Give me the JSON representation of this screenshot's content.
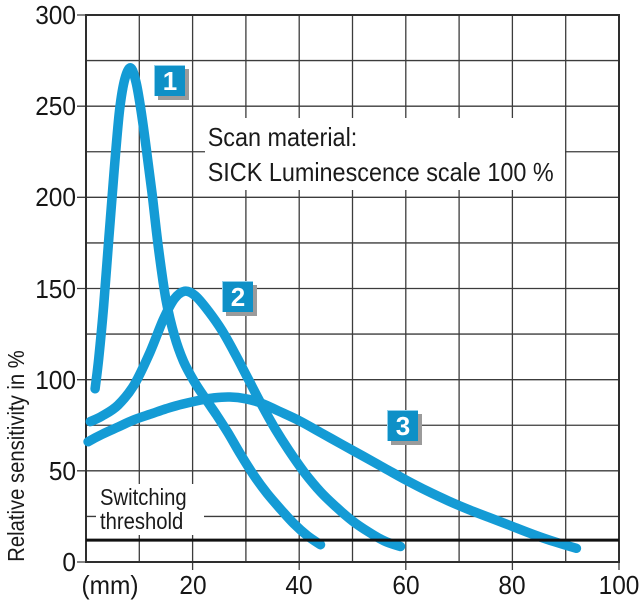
{
  "chart_data": {
    "type": "line",
    "title": "",
    "xlabel": "",
    "ylabel": "Relative sensitivity in %",
    "x_unit_label": "(mm)",
    "x_axis": {
      "min": 0,
      "max": 100,
      "grid_step": 10,
      "label_step": 20,
      "labeled_values": [
        20,
        40,
        60,
        80,
        100
      ]
    },
    "y_axis": {
      "min": 0,
      "max": 300,
      "grid_step": 25,
      "label_step": 50,
      "labeled_values": [
        0,
        50,
        100,
        150,
        200,
        250,
        300
      ]
    },
    "grid": "on",
    "annotation": {
      "line1": "Scan material:",
      "line2": "SICK Luminescence scale 100 %"
    },
    "threshold": {
      "value": 12,
      "label_line1": "Switching",
      "label_line2": "threshold"
    },
    "series": [
      {
        "name": "Curve 1",
        "badge": "1",
        "points": [
          [
            1.7,
            95
          ],
          [
            2.4,
            112
          ],
          [
            3.3,
            140
          ],
          [
            4.3,
            178
          ],
          [
            5.3,
            215
          ],
          [
            6.3,
            248
          ],
          [
            7.3,
            265
          ],
          [
            8.4,
            271
          ],
          [
            9.4,
            263
          ],
          [
            10.3,
            248
          ],
          [
            11.3,
            227
          ],
          [
            12.4,
            202
          ],
          [
            13.6,
            172
          ],
          [
            15,
            144
          ],
          [
            16.6,
            124
          ],
          [
            18.3,
            110
          ],
          [
            20.3,
            99
          ],
          [
            22.3,
            90
          ],
          [
            24.4,
            81
          ],
          [
            26.6,
            71
          ],
          [
            29,
            59
          ],
          [
            31.5,
            47.5
          ],
          [
            34,
            37.5
          ],
          [
            36.5,
            29
          ],
          [
            39,
            21
          ],
          [
            41.5,
            14.5
          ],
          [
            44,
            9.5
          ]
        ]
      },
      {
        "name": "Curve 2",
        "badge": "2",
        "points": [
          [
            0.8,
            77
          ],
          [
            3,
            80
          ],
          [
            6,
            86
          ],
          [
            9,
            97
          ],
          [
            12,
            115
          ],
          [
            14.5,
            133
          ],
          [
            16.5,
            144
          ],
          [
            18.5,
            148.5
          ],
          [
            20.5,
            146
          ],
          [
            23,
            137.5
          ],
          [
            25.5,
            127
          ],
          [
            28,
            114
          ],
          [
            30.5,
            100
          ],
          [
            33,
            86
          ],
          [
            35.5,
            73
          ],
          [
            38,
            61.5
          ],
          [
            41,
            49
          ],
          [
            44,
            38.5
          ],
          [
            47,
            30
          ],
          [
            50,
            22.5
          ],
          [
            53,
            16.5
          ],
          [
            56,
            11.5
          ],
          [
            59,
            8.5
          ]
        ]
      },
      {
        "name": "Curve 3",
        "badge": "3",
        "points": [
          [
            0.4,
            66
          ],
          [
            3,
            70
          ],
          [
            6,
            74
          ],
          [
            9,
            78
          ],
          [
            12,
            81
          ],
          [
            15,
            84
          ],
          [
            18,
            86.5
          ],
          [
            21,
            88.5
          ],
          [
            24,
            90
          ],
          [
            27,
            90.5
          ],
          [
            30,
            89.5
          ],
          [
            33,
            87
          ],
          [
            36,
            83
          ],
          [
            40,
            77.5
          ],
          [
            44,
            71
          ],
          [
            48,
            64.5
          ],
          [
            52,
            58
          ],
          [
            56,
            51.5
          ],
          [
            60,
            45
          ],
          [
            64,
            39
          ],
          [
            68,
            33.5
          ],
          [
            72,
            28.5
          ],
          [
            76,
            24
          ],
          [
            80,
            19.5
          ],
          [
            84,
            15
          ],
          [
            88,
            11
          ],
          [
            92,
            7.5
          ]
        ]
      }
    ],
    "colors": {
      "curve": "#149bd5",
      "badge": "#0e90c7",
      "badge_shadow": "#9b9b9b",
      "grid": "#3c3c3c",
      "border": "#2e2e2e",
      "threshold": "#111111",
      "text": "#1a1a1a"
    }
  }
}
